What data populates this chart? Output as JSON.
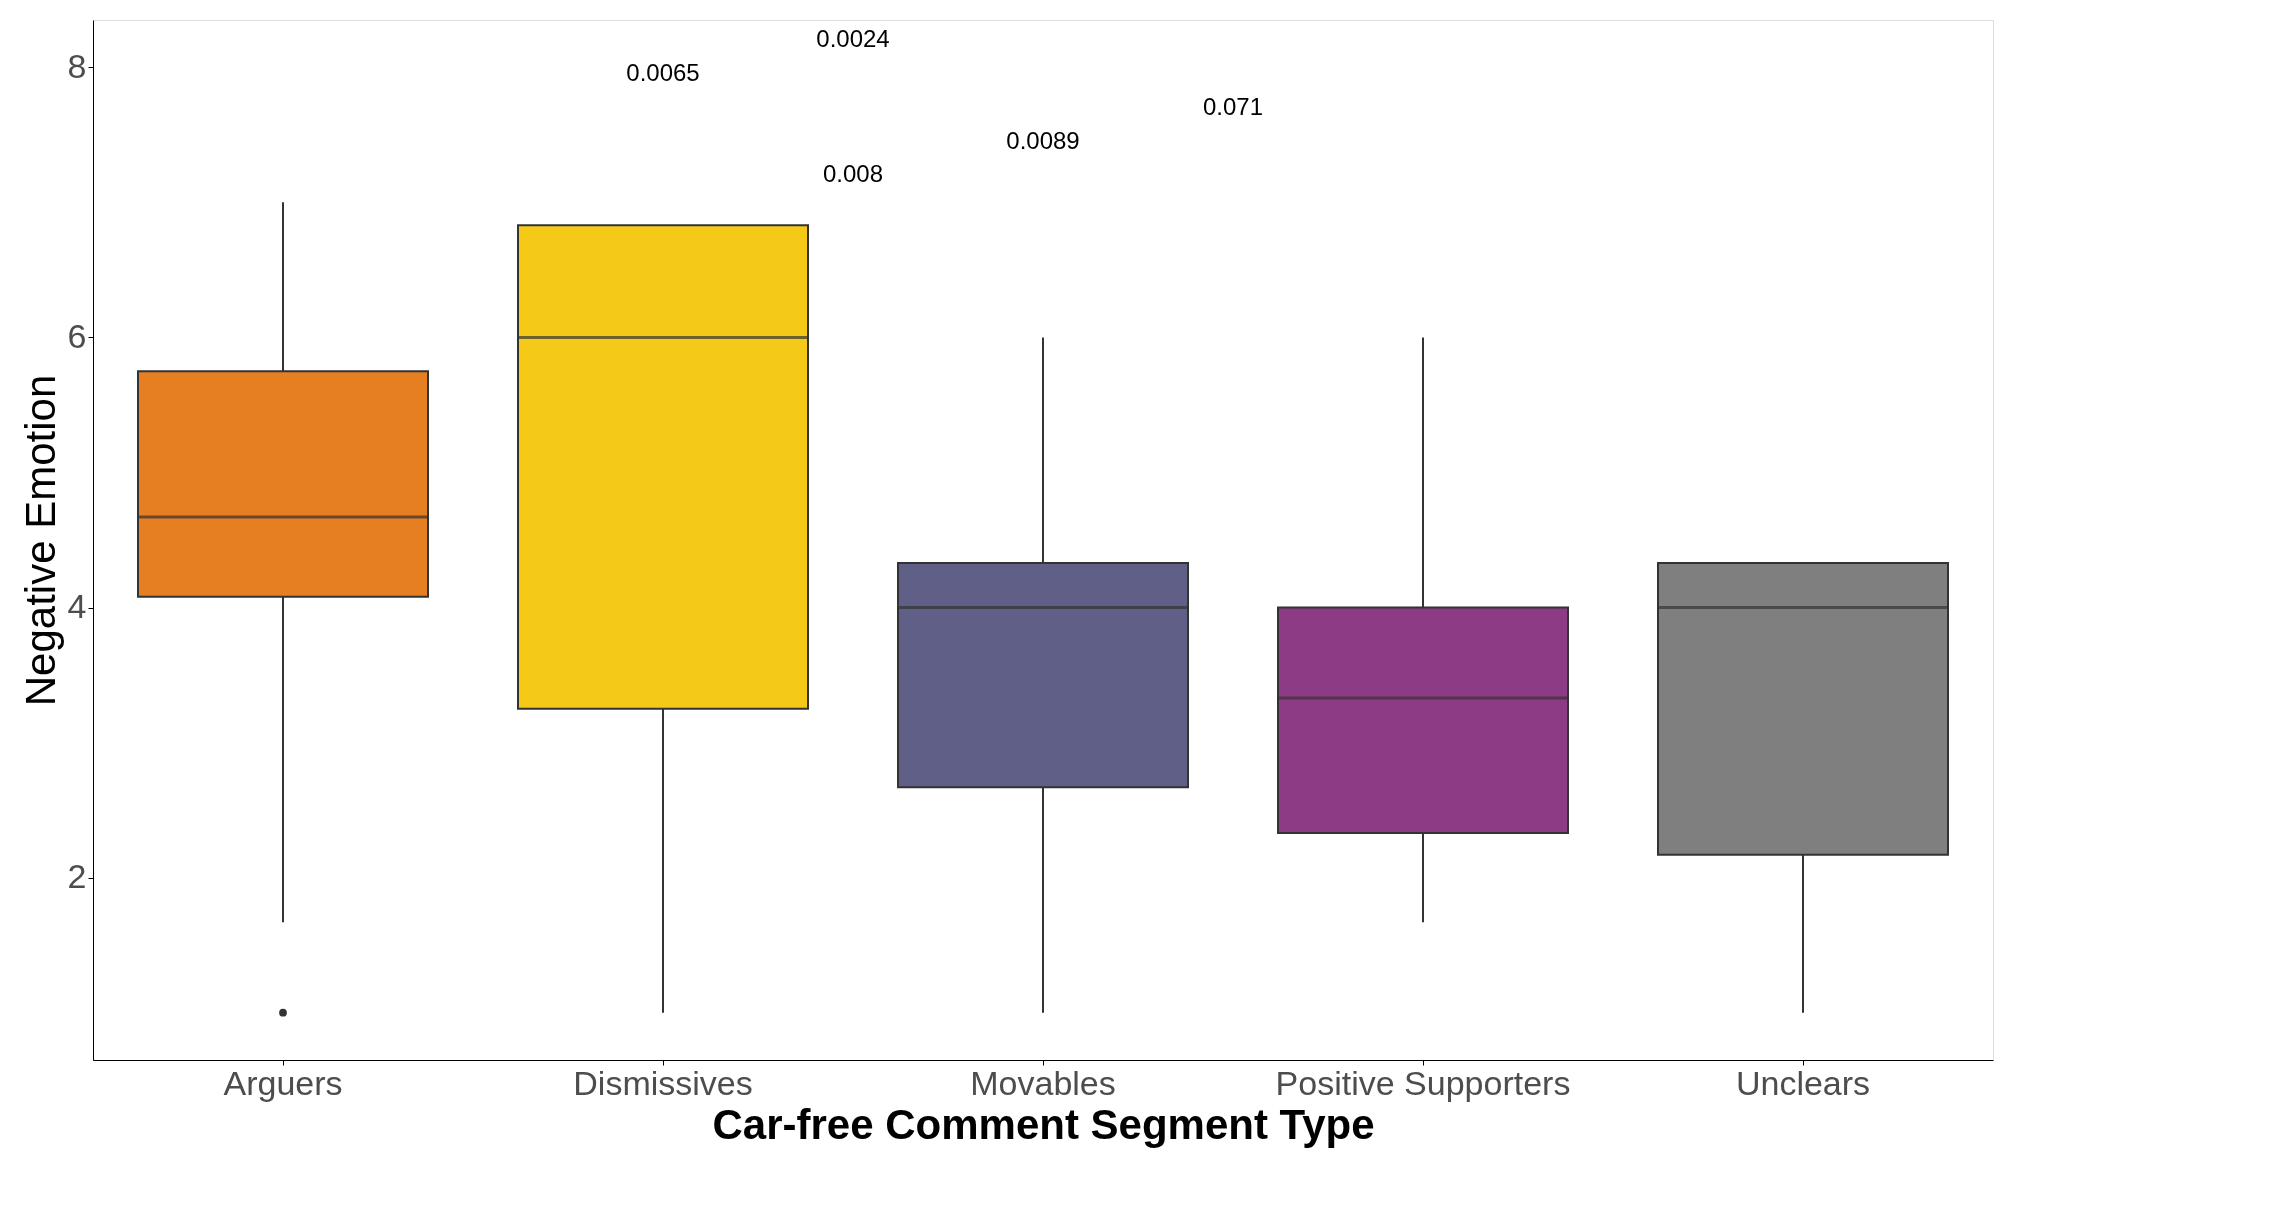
{
  "chart_data": {
    "type": "box",
    "xlabel": "Car-free Comment Segment Type",
    "ylabel": "Negative Emotion",
    "categories": [
      "Arguers",
      "Dismissives",
      "Movables",
      "Positive Supporters",
      "Unclears"
    ],
    "colors": [
      "#e67e22",
      "#f5c918",
      "#5f5f87",
      "#8e3b85",
      "#7f7f7f"
    ],
    "boxes": [
      {
        "low": 1.67,
        "q1": 4.08,
        "median": 4.67,
        "q3": 5.75,
        "high": 7.0,
        "outliers": [
          1.0
        ]
      },
      {
        "low": 1.0,
        "q1": 3.25,
        "median": 6.0,
        "q3": 6.83,
        "high": 6.83
      },
      {
        "low": 1.0,
        "q1": 2.67,
        "median": 4.0,
        "q3": 4.33,
        "high": 6.0
      },
      {
        "low": 1.67,
        "q1": 2.33,
        "median": 3.33,
        "q3": 4.0,
        "high": 6.0
      },
      {
        "low": 1.0,
        "q1": 2.17,
        "median": 4.0,
        "q3": 4.33,
        "high": 4.33
      }
    ],
    "ylim": [
      0.65,
      8.35
    ],
    "yticks": [
      2,
      4,
      6,
      8
    ],
    "grid": false,
    "annotations": [
      "0.0024",
      "0.0065",
      "0.071",
      "0.0089",
      "0.008"
    ]
  }
}
